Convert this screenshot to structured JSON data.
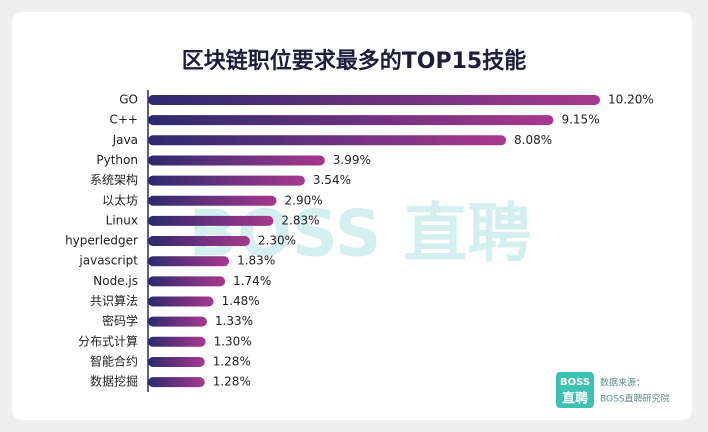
{
  "chart_data": {
    "type": "hbar",
    "title": "区块链职位要求最多的TOP15技能",
    "categories": [
      "GO",
      "C++",
      "Java",
      "Python",
      "系统架构",
      "以太坊",
      "Linux",
      "hyperledger",
      "javascript",
      "Node.js",
      "共识算法",
      "密码学",
      "分布式计算",
      "智能合约",
      "数据挖掘"
    ],
    "values": [
      10.2,
      9.15,
      8.08,
      3.99,
      3.54,
      2.9,
      2.83,
      2.3,
      1.83,
      1.74,
      1.48,
      1.33,
      1.3,
      1.28,
      1.28
    ],
    "value_labels": [
      "10.20%",
      "9.15%",
      "8.08%",
      "3.99%",
      "3.54%",
      "2.90%",
      "2.83%",
      "2.30%",
      "1.83%",
      "1.74%",
      "1.48%",
      "1.33%",
      "1.30%",
      "1.28%",
      "1.28%"
    ],
    "colors": [
      "#2c2a6c",
      "#a8388f"
    ],
    "watermark": "BOSS 直聘",
    "logo": [
      "BOSS",
      "直聘"
    ],
    "source": [
      "数据来源：",
      "BOSS直聘研究院"
    ]
  }
}
